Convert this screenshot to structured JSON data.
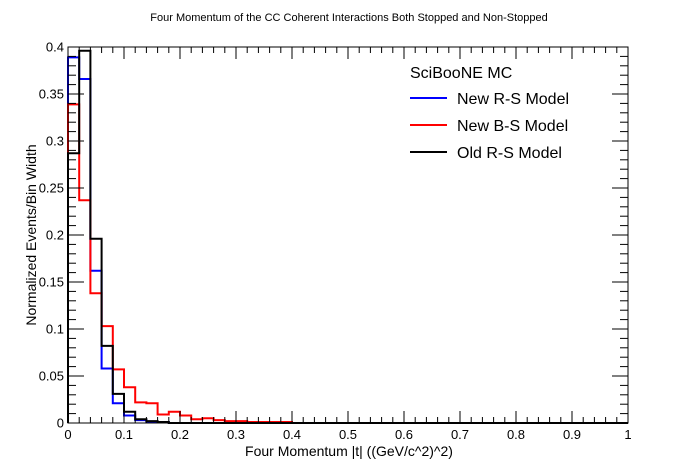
{
  "chart_data": {
    "type": "line",
    "title": "Four Momentum of the CC Coherent Interactions Both Stopped and Non-Stopped",
    "xlabel": "Four Momentum |t| ((GeV/c^2)^2)",
    "ylabel": "Normalized Events/Bin Width",
    "xlim": [
      0,
      1
    ],
    "ylim": [
      0,
      0.4
    ],
    "bin_width": 0.02,
    "x_ticks": [
      0,
      0.1,
      0.2,
      0.3,
      0.4,
      0.5,
      0.6,
      0.7,
      0.8,
      0.9,
      1
    ],
    "x_tick_labels": [
      "0",
      "0.1",
      "0.2",
      "0.3",
      "0.4",
      "0.5",
      "0.6",
      "0.7",
      "0.8",
      "0.9",
      "1"
    ],
    "y_ticks": [
      0,
      0.05,
      0.1,
      0.15,
      0.2,
      0.25,
      0.3,
      0.35,
      0.4
    ],
    "y_tick_labels": [
      "0",
      "0.05",
      "0.1",
      "0.15",
      "0.2",
      "0.25",
      "0.3",
      "0.35",
      "0.4"
    ],
    "grid": false,
    "legend": {
      "header": "SciBooNE MC",
      "placement": "top-right"
    },
    "series": [
      {
        "name": "New R-S Model",
        "color": "#0000ff",
        "values": [
          0.389,
          0.366,
          0.162,
          0.058,
          0.021,
          0.008,
          0.003,
          0.001,
          0.001,
          0,
          0,
          0,
          0,
          0,
          0,
          0,
          0,
          0,
          0,
          0,
          0,
          0,
          0,
          0,
          0,
          0,
          0,
          0,
          0,
          0,
          0,
          0,
          0,
          0,
          0,
          0,
          0,
          0,
          0,
          0,
          0,
          0,
          0,
          0,
          0,
          0,
          0,
          0,
          0,
          0
        ]
      },
      {
        "name": "New B-S Model",
        "color": "#ff0000",
        "values": [
          0.339,
          0.237,
          0.138,
          0.103,
          0.057,
          0.038,
          0.022,
          0.021,
          0.009,
          0.012,
          0.008,
          0.004,
          0.005,
          0.003,
          0.002,
          0.002,
          0.001,
          0.001,
          0.001,
          0.001,
          0,
          0,
          0,
          0,
          0,
          0,
          0,
          0,
          0,
          0,
          0,
          0,
          0,
          0,
          0,
          0,
          0,
          0,
          0,
          0,
          0,
          0,
          0,
          0,
          0,
          0,
          0,
          0,
          0,
          0
        ]
      },
      {
        "name": "Old R-S Model",
        "color": "#000000",
        "values": [
          0.287,
          0.396,
          0.196,
          0.082,
          0.031,
          0.012,
          0.004,
          0.002,
          0.001,
          0,
          0,
          0,
          0,
          0,
          0,
          0,
          0,
          0,
          0,
          0,
          0,
          0,
          0,
          0,
          0,
          0,
          0,
          0,
          0,
          0,
          0,
          0,
          0,
          0,
          0,
          0,
          0,
          0,
          0,
          0,
          0,
          0,
          0,
          0,
          0,
          0,
          0,
          0,
          0,
          0
        ]
      }
    ]
  }
}
